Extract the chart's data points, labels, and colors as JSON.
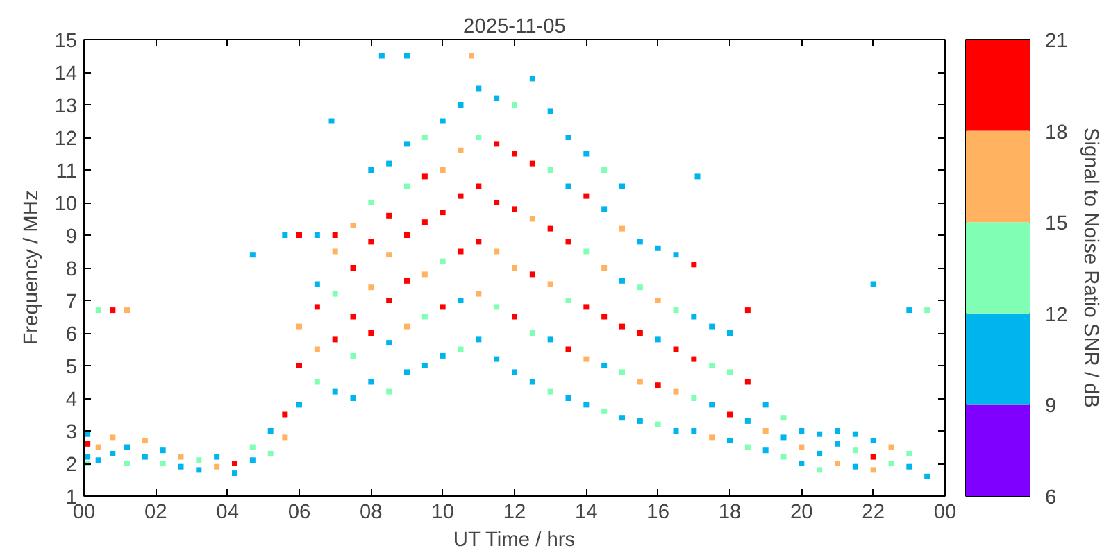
{
  "chart_data": {
    "type": "scatter",
    "title": "2025-11-05",
    "xlabel": "UT Time / hrs",
    "ylabel": "Frequency / MHz",
    "clabel": "Signal to Noise Ratio SNR / dB",
    "marker": "square",
    "grid": false,
    "xlim": [
      0,
      24
    ],
    "xticks": [
      {
        "value": 0,
        "label": "00"
      },
      {
        "value": 2,
        "label": "02"
      },
      {
        "value": 4,
        "label": "04"
      },
      {
        "value": 6,
        "label": "06"
      },
      {
        "value": 8,
        "label": "08"
      },
      {
        "value": 10,
        "label": "10"
      },
      {
        "value": 12,
        "label": "12"
      },
      {
        "value": 14,
        "label": "14"
      },
      {
        "value": 16,
        "label": "16"
      },
      {
        "value": 18,
        "label": "18"
      },
      {
        "value": 20,
        "label": "20"
      },
      {
        "value": 22,
        "label": "22"
      },
      {
        "value": 24,
        "label": "00"
      }
    ],
    "ylim": [
      1,
      15
    ],
    "yticks": [
      1,
      2,
      3,
      4,
      5,
      6,
      7,
      8,
      9,
      10,
      11,
      12,
      13,
      14,
      15
    ],
    "clim": [
      6,
      21
    ],
    "cticks": [
      6,
      9,
      12,
      15,
      18,
      21
    ],
    "x": [
      0.1,
      0.1,
      0.1,
      0.1,
      0.4,
      0.4,
      0.4,
      0.8,
      0.8,
      0.8,
      1.2,
      1.2,
      1.2,
      1.7,
      1.7,
      2.2,
      2.2,
      2.7,
      2.7,
      3.2,
      3.2,
      3.7,
      3.7,
      4.2,
      4.2,
      4.7,
      4.7,
      4.7,
      5.2,
      5.2,
      5.6,
      5.6,
      5.6,
      6.0,
      6.0,
      6.0,
      6.0,
      6.5,
      6.5,
      6.5,
      6.5,
      6.5,
      7.0,
      7.0,
      7.0,
      7.0,
      7.0,
      7.5,
      7.5,
      7.5,
      7.5,
      7.5,
      8.0,
      8.0,
      8.0,
      8.0,
      8.0,
      8.0,
      8.5,
      8.5,
      8.5,
      8.5,
      8.5,
      8.5,
      9.0,
      9.0,
      9.0,
      9.0,
      9.0,
      9.0,
      9.5,
      9.5,
      9.5,
      9.5,
      9.5,
      9.5,
      10.0,
      10.0,
      10.0,
      10.0,
      10.0,
      10.0,
      10.5,
      10.5,
      10.5,
      10.5,
      10.5,
      10.5,
      11.0,
      11.0,
      11.0,
      11.0,
      11.0,
      11.0,
      11.5,
      11.5,
      11.5,
      11.5,
      11.5,
      11.5,
      12.0,
      12.0,
      12.0,
      12.0,
      12.0,
      12.0,
      12.5,
      12.5,
      12.5,
      12.5,
      12.5,
      12.5,
      13.0,
      13.0,
      13.0,
      13.0,
      13.0,
      13.0,
      13.5,
      13.5,
      13.5,
      13.5,
      13.5,
      13.5,
      14.0,
      14.0,
      14.0,
      14.0,
      14.0,
      14.0,
      14.5,
      14.5,
      14.5,
      14.5,
      14.5,
      14.5,
      15.0,
      15.0,
      15.0,
      15.0,
      15.0,
      15.0,
      15.5,
      15.5,
      15.5,
      15.5,
      15.5,
      16.0,
      16.0,
      16.0,
      16.0,
      16.0,
      16.5,
      16.5,
      16.5,
      16.5,
      16.5,
      17.0,
      17.0,
      17.0,
      17.0,
      17.0,
      17.5,
      17.5,
      17.5,
      17.5,
      18.0,
      18.0,
      18.0,
      18.0,
      18.5,
      18.5,
      18.5,
      18.5,
      19.0,
      19.0,
      19.0,
      19.5,
      19.5,
      19.5,
      20.0,
      20.0,
      20.0,
      20.5,
      20.5,
      20.5,
      21.0,
      21.0,
      21.0,
      21.5,
      21.5,
      21.5,
      22.0,
      22.0,
      22.0,
      22.0,
      22.5,
      22.5,
      23.0,
      23.0,
      23.0,
      23.5,
      23.5,
      8.3,
      9.0,
      10.8,
      6.9,
      17.1
    ],
    "values": [
      2.2,
      2.6,
      2.9,
      2.0,
      2.5,
      2.1,
      6.7,
      2.3,
      2.8,
      6.7,
      2.0,
      2.5,
      6.7,
      2.2,
      2.7,
      2.0,
      2.4,
      1.9,
      2.2,
      1.8,
      2.1,
      1.9,
      2.2,
      1.7,
      2.0,
      2.1,
      2.5,
      8.4,
      2.3,
      3.0,
      2.8,
      3.5,
      9.0,
      3.8,
      5.0,
      6.2,
      9.0,
      4.5,
      5.5,
      6.8,
      7.5,
      9.0,
      4.2,
      5.8,
      7.2,
      8.5,
      9.0,
      4.0,
      5.3,
      6.5,
      8.0,
      9.3,
      4.5,
      6.0,
      7.4,
      8.8,
      10.0,
      11.0,
      4.2,
      5.7,
      7.0,
      8.4,
      9.6,
      11.2,
      4.8,
      6.2,
      7.6,
      9.0,
      10.5,
      11.8,
      5.0,
      6.5,
      7.8,
      9.4,
      10.8,
      12.0,
      5.3,
      6.8,
      8.2,
      9.7,
      11.0,
      12.5,
      5.5,
      7.0,
      8.5,
      10.2,
      11.6,
      13.0,
      5.8,
      7.2,
      8.8,
      10.5,
      12.0,
      13.5,
      5.2,
      6.8,
      8.5,
      10.0,
      11.8,
      13.2,
      4.8,
      6.5,
      8.0,
      9.8,
      11.5,
      13.0,
      4.5,
      6.0,
      7.8,
      9.5,
      11.2,
      13.8,
      4.2,
      5.8,
      7.5,
      9.2,
      11.0,
      12.8,
      4.0,
      5.5,
      7.0,
      8.8,
      10.5,
      12.0,
      3.8,
      5.2,
      6.8,
      8.5,
      10.2,
      11.5,
      3.6,
      5.0,
      6.5,
      8.0,
      9.8,
      11.0,
      3.4,
      4.8,
      6.2,
      7.6,
      9.2,
      10.5,
      3.3,
      4.5,
      6.0,
      7.4,
      8.8,
      3.2,
      4.4,
      5.8,
      7.0,
      8.6,
      3.0,
      4.2,
      5.5,
      6.7,
      8.4,
      3.0,
      4.0,
      5.2,
      6.5,
      8.1,
      2.8,
      3.8,
      5.0,
      6.2,
      2.7,
      3.5,
      4.8,
      6.0,
      2.5,
      3.3,
      4.5,
      6.7,
      2.4,
      3.0,
      3.8,
      2.2,
      2.8,
      3.4,
      2.0,
      2.5,
      3.0,
      1.8,
      2.3,
      2.9,
      2.0,
      2.6,
      3.0,
      1.9,
      2.4,
      2.9,
      1.8,
      2.2,
      2.7,
      7.5,
      2.0,
      2.5,
      1.9,
      2.3,
      6.7,
      1.6,
      6.7,
      14.5,
      14.5,
      14.5,
      12.5,
      10.8
    ],
    "colors": [
      "#00b4ec",
      "#ff0000",
      "#00b4ec",
      "#80ffb4",
      "#ffb360",
      "#00b4ec",
      "#80ffb4",
      "#00b4ec",
      "#ffb360",
      "#ff0000",
      "#80ffb4",
      "#00b4ec",
      "#ffb360",
      "#00b4ec",
      "#ffb360",
      "#80ffb4",
      "#00b4ec",
      "#00b4ec",
      "#ffb360",
      "#00b4ec",
      "#80ffb4",
      "#ffb360",
      "#00b4ec",
      "#00b4ec",
      "#ff0000",
      "#00b4ec",
      "#80ffb4",
      "#00b4ec",
      "#80ffb4",
      "#00b4ec",
      "#ffb360",
      "#ff0000",
      "#00b4ec",
      "#00b4ec",
      "#ff0000",
      "#ffb360",
      "#ff0000",
      "#80ffb4",
      "#ffb360",
      "#ff0000",
      "#00b4ec",
      "#00b4ec",
      "#00b4ec",
      "#ff0000",
      "#80ffb4",
      "#ffb360",
      "#ff0000",
      "#00b4ec",
      "#80ffb4",
      "#ff0000",
      "#ff0000",
      "#ffb360",
      "#00b4ec",
      "#ff0000",
      "#ffb360",
      "#ff0000",
      "#80ffb4",
      "#00b4ec",
      "#80ffb4",
      "#00b4ec",
      "#ff0000",
      "#ffb360",
      "#ff0000",
      "#00b4ec",
      "#00b4ec",
      "#ffb360",
      "#ff0000",
      "#ff0000",
      "#80ffb4",
      "#00b4ec",
      "#00b4ec",
      "#80ffb4",
      "#ffb360",
      "#ff0000",
      "#ff0000",
      "#80ffb4",
      "#00b4ec",
      "#ff0000",
      "#80ffb4",
      "#ff0000",
      "#ffb360",
      "#00b4ec",
      "#80ffb4",
      "#00b4ec",
      "#ff0000",
      "#ff0000",
      "#ffb360",
      "#00b4ec",
      "#00b4ec",
      "#ffb360",
      "#ff0000",
      "#ff0000",
      "#80ffb4",
      "#00b4ec",
      "#00b4ec",
      "#80ffb4",
      "#ffb360",
      "#ff0000",
      "#ff0000",
      "#00b4ec",
      "#00b4ec",
      "#ff0000",
      "#ffb360",
      "#ff0000",
      "#ff0000",
      "#80ffb4",
      "#00b4ec",
      "#80ffb4",
      "#ff0000",
      "#ffb360",
      "#ff0000",
      "#00b4ec",
      "#80ffb4",
      "#00b4ec",
      "#ffb360",
      "#ff0000",
      "#80ffb4",
      "#00b4ec",
      "#00b4ec",
      "#ff0000",
      "#80ffb4",
      "#ff0000",
      "#00b4ec",
      "#00b4ec",
      "#00b4ec",
      "#ffb360",
      "#ff0000",
      "#80ffb4",
      "#ff0000",
      "#00b4ec",
      "#80ffb4",
      "#00b4ec",
      "#ff0000",
      "#ffb360",
      "#00b4ec",
      "#80ffb4",
      "#00b4ec",
      "#80ffb4",
      "#ff0000",
      "#00b4ec",
      "#ffb360",
      "#00b4ec",
      "#00b4ec",
      "#ffb360",
      "#ff0000",
      "#80ffb4",
      "#00b4ec",
      "#80ffb4",
      "#ff0000",
      "#00b4ec",
      "#ffb360",
      "#00b4ec",
      "#00b4ec",
      "#ffb360",
      "#ff0000",
      "#80ffb4",
      "#00b4ec",
      "#00b4ec",
      "#80ffb4",
      "#ff0000",
      "#00b4ec",
      "#ff0000",
      "#ffb360",
      "#00b4ec",
      "#80ffb4",
      "#00b4ec",
      "#00b4ec",
      "#ff0000",
      "#80ffb4",
      "#00b4ec",
      "#80ffb4",
      "#00b4ec",
      "#ff0000",
      "#ff0000",
      "#00b4ec",
      "#ffb360",
      "#00b4ec",
      "#80ffb4",
      "#00b4ec",
      "#80ffb4",
      "#00b4ec",
      "#ffb360",
      "#00b4ec",
      "#80ffb4",
      "#00b4ec",
      "#00b4ec",
      "#ffb360",
      "#00b4ec",
      "#00b4ec",
      "#00b4ec",
      "#80ffb4",
      "#00b4ec",
      "#ffb360",
      "#ff0000",
      "#00b4ec",
      "#00b4ec",
      "#80ffb4",
      "#ffb360",
      "#00b4ec",
      "#80ffb4",
      "#00b4ec",
      "#00b4ec",
      "#80ffb4",
      "#00b4ec",
      "#00b4ec",
      "#ffb360",
      "#00b4ec",
      "#00b4ec"
    ]
  }
}
